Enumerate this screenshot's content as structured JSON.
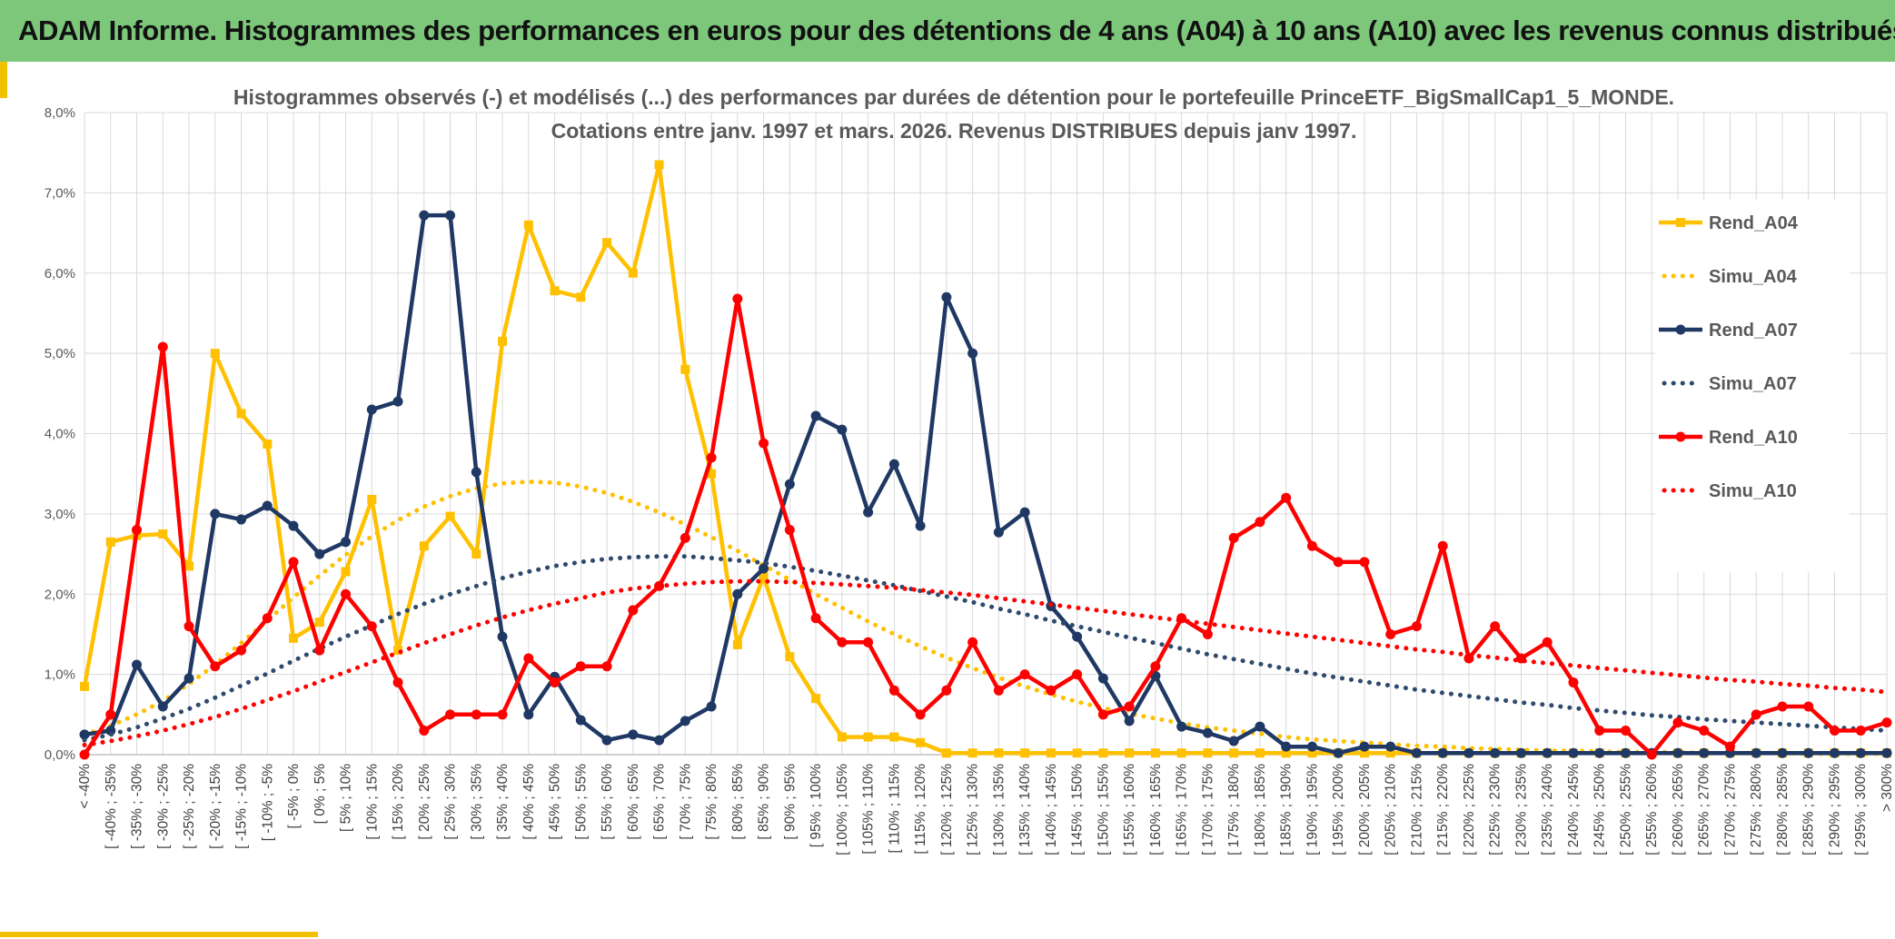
{
  "header": {
    "title": "ADAM Informe. Histogrammes des performances en euros pour des détentions de 4 ans (A04) à 10 ans (A10) avec les revenus connus distribués"
  },
  "colors": {
    "banner": "#7dc77b",
    "accent": "#f2c200",
    "a04": "#ffc000",
    "a07": "#1f3864",
    "a10": "#ff0000",
    "simu_a07": "#2e4a6e"
  },
  "chart_data": {
    "type": "line",
    "title": "Histogrammes observés (-) et modélisés (...) des performances par durées de détention pour le portefeuille PrinceETF_BigSmallCap1_5_MONDE.",
    "subtitle": "Cotations entre janv. 1997 et mars. 2026. Revenus DISTRIBUES depuis janv 1997.",
    "xlabel": "",
    "ylabel": "",
    "ylim": [
      0,
      8
    ],
    "yticks": [
      "0,0%",
      "1,0%",
      "2,0%",
      "3,0%",
      "4,0%",
      "5,0%",
      "6,0%",
      "7,0%",
      "8,0%"
    ],
    "grid": true,
    "legend_position": "right",
    "categories": [
      "< -40%",
      "[ -40% ; -35%",
      "[ -35% ; -30%",
      "[ -30% ; -25%",
      "[ -25% ; -20%",
      "[ -20% ; -15%",
      "[ -15% ; -10%",
      "[ -10% ; -5%",
      "[ -5% ; 0%",
      "[ 0% ; 5%",
      "[ 5% ; 10%",
      "[ 10% ; 15%",
      "[ 15% ; 20%",
      "[ 20% ; 25%",
      "[ 25% ; 30%",
      "[ 30% ; 35%",
      "[ 35% ; 40%",
      "[ 40% ; 45%",
      "[ 45% ; 50%",
      "[ 50% ; 55%",
      "[ 55% ; 60%",
      "[ 60% ; 65%",
      "[ 65% ; 70%",
      "[ 70% ; 75%",
      "[ 75% ; 80%",
      "[ 80% ; 85%",
      "[ 85% ; 90%",
      "[ 90% ; 95%",
      "[ 95% ; 100%",
      "[ 100% ; 105%",
      "[ 105% ; 110%",
      "[ 110% ; 115%",
      "[ 115% ; 120%",
      "[ 120% ; 125%",
      "[ 125% ; 130%",
      "[ 130% ; 135%",
      "[ 135% ; 140%",
      "[ 140% ; 145%",
      "[ 145% ; 150%",
      "[ 150% ; 155%",
      "[ 155% ; 160%",
      "[ 160% ; 165%",
      "[ 165% ; 170%",
      "[ 170% ; 175%",
      "[ 175% ; 180%",
      "[ 180% ; 185%",
      "[ 185% ; 190%",
      "[ 190% ; 195%",
      "[ 195% ; 200%",
      "[ 200% ; 205%",
      "[ 205% ; 210%",
      "[ 210% ; 215%",
      "[ 215% ; 220%",
      "[ 220% ; 225%",
      "[ 225% ; 230%",
      "[ 230% ; 235%",
      "[ 235% ; 240%",
      "[ 240% ; 245%",
      "[ 245% ; 250%",
      "[ 250% ; 255%",
      "[ 255% ; 260%",
      "[ 260% ; 265%",
      "[ 265% ; 270%",
      "[ 270% ; 275%",
      "[ 275% ; 280%",
      "[ 280% ; 285%",
      "[ 285% ; 290%",
      "[ 290% ; 295%",
      "[ 295% ; 300%",
      "> 300%"
    ],
    "series": [
      {
        "name": "Rend_A04",
        "style": "solid",
        "marker": "square",
        "color": "#ffc000",
        "values": [
          0.85,
          2.65,
          2.73,
          2.75,
          2.35,
          5.0,
          4.25,
          3.87,
          1.45,
          1.65,
          2.28,
          3.18,
          1.3,
          2.6,
          2.97,
          2.5,
          5.15,
          6.6,
          5.78,
          5.7,
          6.38,
          6.0,
          7.35,
          4.8,
          3.5,
          1.37,
          2.22,
          1.22,
          0.7,
          0.22,
          0.22,
          0.22,
          0.15,
          0.02,
          0.02,
          0.02,
          0.02,
          0.02,
          0.02,
          0.02,
          0.02,
          0.02,
          0.02,
          0.02,
          0.02,
          0.02,
          0.02,
          0.02,
          0.02,
          0.02,
          0.02,
          0.02,
          0.02,
          0.02,
          0.02,
          0.02,
          0.02,
          0.02,
          0.02,
          0.02,
          0.02,
          0.02,
          0.02,
          0.02,
          0.02,
          0.02,
          0.02,
          0.02,
          0.02,
          0.02
        ]
      },
      {
        "name": "Simu_A04",
        "style": "dotted",
        "color": "#ffc000",
        "values": [
          0.25,
          0.36,
          0.5,
          0.67,
          0.88,
          1.12,
          1.39,
          1.67,
          1.96,
          2.23,
          2.49,
          2.72,
          2.92,
          3.09,
          3.22,
          3.32,
          3.38,
          3.4,
          3.39,
          3.34,
          3.26,
          3.15,
          3.02,
          2.87,
          2.71,
          2.54,
          2.36,
          2.18,
          2.0,
          1.83,
          1.66,
          1.5,
          1.35,
          1.21,
          1.08,
          0.96,
          0.85,
          0.75,
          0.66,
          0.58,
          0.51,
          0.45,
          0.39,
          0.34,
          0.3,
          0.26,
          0.22,
          0.19,
          0.17,
          0.15,
          0.13,
          0.11,
          0.1,
          0.08,
          0.07,
          0.06,
          0.05,
          0.05,
          0.04,
          0.03,
          0.03,
          0.03,
          0.02,
          0.02,
          0.02,
          0.02,
          0.01,
          0.01,
          0.01,
          0.01
        ]
      },
      {
        "name": "Rend_A07",
        "style": "solid",
        "marker": "circle",
        "color": "#1f3864",
        "values": [
          0.25,
          0.3,
          1.12,
          0.6,
          0.95,
          3.0,
          2.93,
          3.1,
          2.85,
          2.5,
          2.65,
          4.3,
          4.4,
          6.72,
          6.72,
          3.52,
          1.47,
          0.5,
          0.97,
          0.43,
          0.18,
          0.25,
          0.18,
          0.42,
          0.6,
          2.0,
          2.32,
          3.37,
          4.22,
          4.05,
          3.02,
          3.62,
          2.85,
          5.7,
          5.0,
          2.77,
          3.02,
          1.85,
          1.47,
          0.95,
          0.42,
          0.98,
          0.35,
          0.27,
          0.17,
          0.35,
          0.1,
          0.1,
          0.02,
          0.1,
          0.1,
          0.02,
          0.02,
          0.02,
          0.02,
          0.02,
          0.02,
          0.02,
          0.02,
          0.02,
          0.02,
          0.02,
          0.02,
          0.02,
          0.02,
          0.02,
          0.02,
          0.02,
          0.02,
          0.02
        ]
      },
      {
        "name": "Simu_A07",
        "style": "dotted",
        "color": "#2e4a6e",
        "values": [
          0.18,
          0.25,
          0.34,
          0.45,
          0.57,
          0.71,
          0.86,
          1.01,
          1.17,
          1.32,
          1.47,
          1.61,
          1.75,
          1.88,
          2.0,
          2.1,
          2.2,
          2.28,
          2.35,
          2.4,
          2.44,
          2.46,
          2.47,
          2.47,
          2.45,
          2.42,
          2.39,
          2.34,
          2.29,
          2.23,
          2.17,
          2.11,
          2.04,
          1.97,
          1.9,
          1.82,
          1.75,
          1.67,
          1.6,
          1.53,
          1.46,
          1.39,
          1.32,
          1.25,
          1.19,
          1.13,
          1.07,
          1.01,
          0.96,
          0.91,
          0.86,
          0.81,
          0.77,
          0.73,
          0.69,
          0.65,
          0.62,
          0.58,
          0.55,
          0.52,
          0.49,
          0.47,
          0.44,
          0.42,
          0.4,
          0.38,
          0.36,
          0.34,
          0.32,
          0.3
        ]
      },
      {
        "name": "Rend_A10",
        "style": "solid",
        "marker": "circle",
        "color": "#ff0000",
        "values": [
          0.0,
          0.5,
          2.8,
          5.08,
          1.6,
          1.1,
          1.3,
          1.7,
          2.4,
          1.3,
          2.0,
          1.6,
          0.9,
          0.3,
          0.5,
          0.5,
          0.5,
          1.2,
          0.9,
          1.1,
          1.1,
          1.8,
          2.1,
          2.7,
          3.7,
          5.68,
          3.88,
          2.8,
          1.7,
          1.4,
          1.4,
          0.8,
          0.5,
          0.8,
          1.4,
          0.8,
          1.0,
          0.8,
          1.0,
          0.5,
          0.6,
          1.1,
          1.7,
          1.5,
          2.7,
          2.9,
          3.2,
          2.6,
          2.4,
          2.4,
          1.5,
          1.6,
          2.6,
          1.2,
          1.6,
          1.2,
          1.4,
          0.9,
          0.3,
          0.3,
          0.0,
          0.4,
          0.3,
          0.1,
          0.5,
          0.6,
          0.6,
          0.3,
          0.3,
          0.4
        ]
      },
      {
        "name": "Simu_A10",
        "style": "dotted",
        "color": "#ff0000",
        "values": [
          0.12,
          0.17,
          0.23,
          0.3,
          0.38,
          0.47,
          0.57,
          0.68,
          0.79,
          0.91,
          1.03,
          1.15,
          1.27,
          1.39,
          1.5,
          1.61,
          1.71,
          1.8,
          1.88,
          1.95,
          2.02,
          2.07,
          2.1,
          2.13,
          2.15,
          2.16,
          2.16,
          2.15,
          2.14,
          2.12,
          2.1,
          2.08,
          2.05,
          2.02,
          1.99,
          1.95,
          1.91,
          1.87,
          1.83,
          1.79,
          1.75,
          1.71,
          1.67,
          1.63,
          1.59,
          1.55,
          1.51,
          1.47,
          1.43,
          1.39,
          1.35,
          1.31,
          1.28,
          1.24,
          1.21,
          1.17,
          1.14,
          1.11,
          1.08,
          1.05,
          1.02,
          0.99,
          0.96,
          0.93,
          0.91,
          0.88,
          0.86,
          0.83,
          0.81,
          0.78
        ]
      }
    ]
  }
}
